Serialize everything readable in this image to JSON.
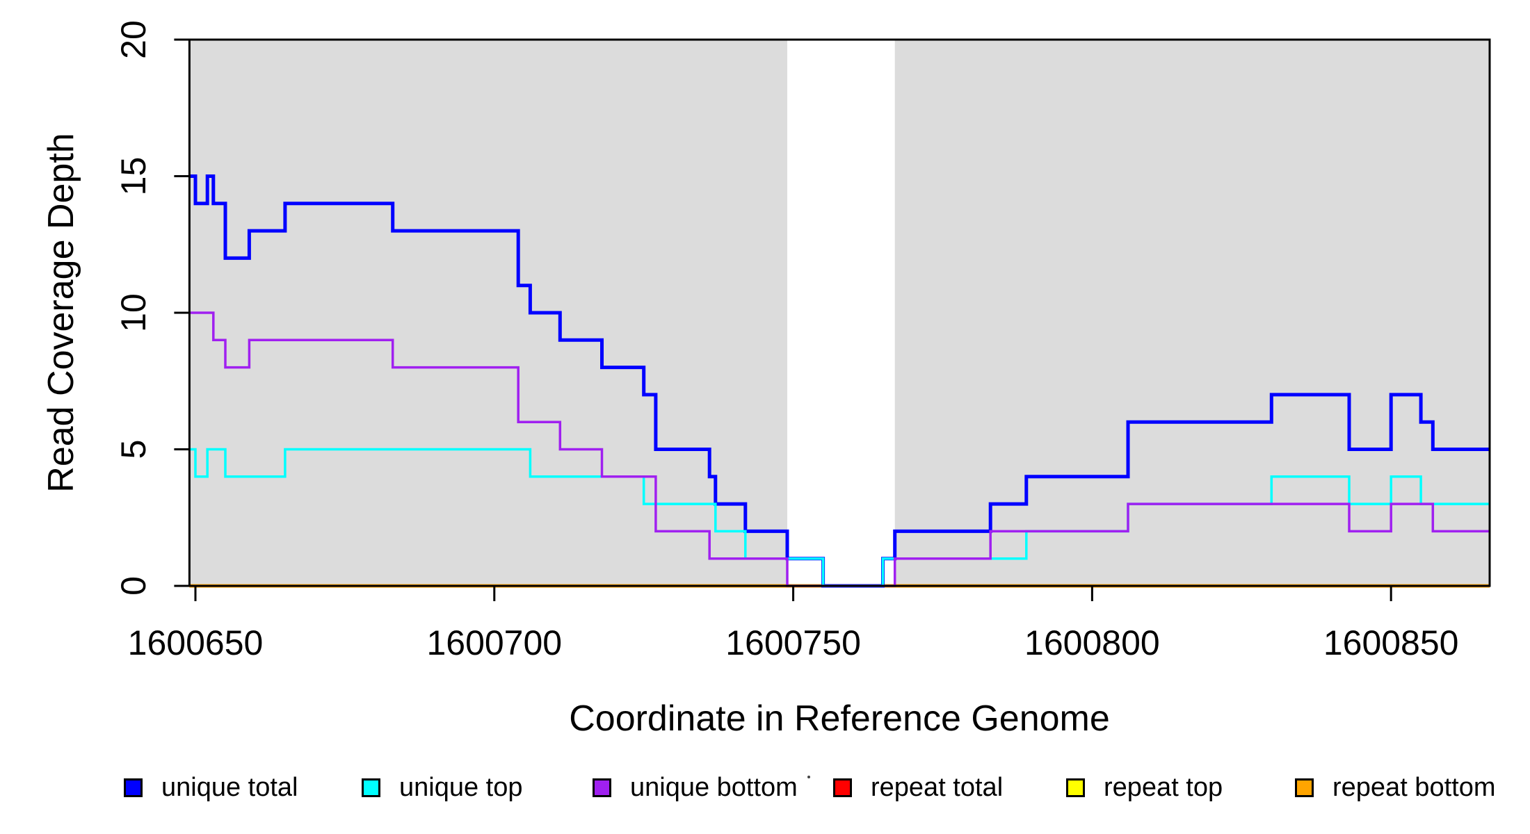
{
  "chart_data": {
    "type": "line",
    "subtype": "step-coverage",
    "title": "",
    "xlabel": "Coordinate in Reference Genome",
    "ylabel": "Read Coverage Depth",
    "xlim": [
      1600649,
      1600866.5
    ],
    "ylim": [
      0,
      20
    ],
    "xticks": [
      1600650,
      1600700,
      1600750,
      1600800,
      1600850
    ],
    "yticks": [
      0,
      5,
      10,
      15,
      20
    ],
    "grid": false,
    "shade_color": "#DCDCDC",
    "axis_color": "#000000",
    "shaded_regions": [
      [
        1600649,
        1600749
      ],
      [
        1600767,
        1600866.5
      ]
    ],
    "series": [
      {
        "name": "repeat total",
        "color": "#FF0000",
        "width": 4,
        "steps": [
          [
            1600649,
            0
          ]
        ]
      },
      {
        "name": "repeat top",
        "color": "#FFFF00",
        "width": 4,
        "steps": [
          [
            1600649,
            0
          ]
        ]
      },
      {
        "name": "repeat bottom",
        "color": "#FFA500",
        "width": 5,
        "steps": [
          [
            1600649,
            0
          ]
        ]
      },
      {
        "name": "unique total",
        "color": "#0000FF",
        "width": 5,
        "steps": [
          [
            1600649,
            15
          ],
          [
            1600650,
            14
          ],
          [
            1600652,
            15
          ],
          [
            1600653,
            14
          ],
          [
            1600655,
            12
          ],
          [
            1600659,
            13
          ],
          [
            1600665,
            14
          ],
          [
            1600683,
            13
          ],
          [
            1600704,
            11
          ],
          [
            1600706,
            10
          ],
          [
            1600711,
            9
          ],
          [
            1600718,
            8
          ],
          [
            1600725,
            7
          ],
          [
            1600727,
            5
          ],
          [
            1600736,
            4
          ],
          [
            1600737,
            3
          ],
          [
            1600742,
            2
          ],
          [
            1600749,
            1
          ],
          [
            1600755,
            0
          ],
          [
            1600765,
            1
          ],
          [
            1600767,
            2
          ],
          [
            1600783,
            3
          ],
          [
            1600789,
            4
          ],
          [
            1600806,
            6
          ],
          [
            1600830,
            7
          ],
          [
            1600843,
            5
          ],
          [
            1600850,
            7
          ],
          [
            1600855,
            6
          ],
          [
            1600857,
            5
          ]
        ]
      },
      {
        "name": "unique top",
        "color": "#00FFFF",
        "width": 3.5,
        "steps": [
          [
            1600649,
            5
          ],
          [
            1600650,
            4
          ],
          [
            1600652,
            5
          ],
          [
            1600655,
            4
          ],
          [
            1600665,
            5
          ],
          [
            1600706,
            4
          ],
          [
            1600725,
            3
          ],
          [
            1600737,
            2
          ],
          [
            1600742,
            1
          ],
          [
            1600755,
            0
          ],
          [
            1600765,
            1
          ],
          [
            1600789,
            2
          ],
          [
            1600806,
            3
          ],
          [
            1600830,
            4
          ],
          [
            1600843,
            3
          ],
          [
            1600850,
            4
          ],
          [
            1600855,
            3
          ]
        ]
      },
      {
        "name": "unique bottom",
        "color": "#A020F0",
        "width": 3.5,
        "steps": [
          [
            1600649,
            10
          ],
          [
            1600653,
            9
          ],
          [
            1600655,
            8
          ],
          [
            1600659,
            9
          ],
          [
            1600683,
            8
          ],
          [
            1600704,
            6
          ],
          [
            1600711,
            5
          ],
          [
            1600718,
            4
          ],
          [
            1600727,
            2
          ],
          [
            1600736,
            1
          ],
          [
            1600749,
            0
          ],
          [
            1600767,
            1
          ],
          [
            1600783,
            2
          ],
          [
            1600806,
            3
          ],
          [
            1600843,
            2
          ],
          [
            1600850,
            3
          ],
          [
            1600857,
            2
          ]
        ]
      }
    ],
    "legend": [
      {
        "label": "unique total",
        "color": "#0000FF"
      },
      {
        "label": "unique top",
        "color": "#00FFFF"
      },
      {
        "label": "unique bottom",
        "color": "#A020F0"
      },
      {
        "label": "repeat total",
        "color": "#FF0000"
      },
      {
        "label": "repeat top",
        "color": "#FFFF00"
      },
      {
        "label": "repeat bottom",
        "color": "#FFA500"
      }
    ],
    "legend_position": "bottom"
  }
}
